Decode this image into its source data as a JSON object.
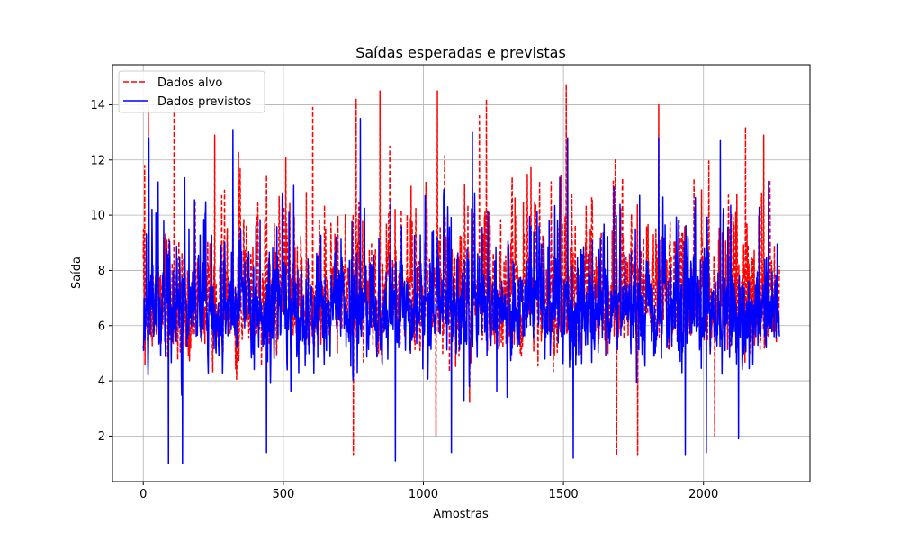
{
  "chart_data": {
    "type": "line",
    "title": "Saídas esperadas e previstas",
    "xlabel": "Amostras",
    "ylabel": "Saída",
    "xlim": [
      -110,
      2380
    ],
    "ylim": [
      0.35,
      15.45
    ],
    "x_ticks": [
      0,
      500,
      1000,
      1500,
      2000
    ],
    "y_ticks": [
      2,
      4,
      6,
      8,
      10,
      12,
      14
    ],
    "grid": true,
    "legend_position": "top-left",
    "n_samples": 2272,
    "series": [
      {
        "name": "Dados alvo",
        "color": "#ff0000",
        "linestyle": "dashed",
        "baseline": 6.3,
        "min": 1.3,
        "max": 14.75,
        "peaks": [
          {
            "x": 5,
            "y": 11.8
          },
          {
            "x": 18,
            "y": 13.9
          },
          {
            "x": 110,
            "y": 13.9
          },
          {
            "x": 255,
            "y": 12.9
          },
          {
            "x": 340,
            "y": 12.3
          },
          {
            "x": 605,
            "y": 13.9
          },
          {
            "x": 760,
            "y": 14.2
          },
          {
            "x": 845,
            "y": 14.5
          },
          {
            "x": 880,
            "y": 12.5
          },
          {
            "x": 1050,
            "y": 14.5
          },
          {
            "x": 1200,
            "y": 13.6
          },
          {
            "x": 1225,
            "y": 14.2
          },
          {
            "x": 1510,
            "y": 14.75
          },
          {
            "x": 1685,
            "y": 12.0
          },
          {
            "x": 1840,
            "y": 14.0
          },
          {
            "x": 2150,
            "y": 13.2
          },
          {
            "x": 2215,
            "y": 12.9
          }
        ],
        "troughs": [
          {
            "x": 750,
            "y": 1.3
          },
          {
            "x": 1045,
            "y": 2.0
          },
          {
            "x": 1690,
            "y": 1.3
          },
          {
            "x": 1765,
            "y": 1.3
          },
          {
            "x": 2040,
            "y": 2.0
          }
        ]
      },
      {
        "name": "Dados previstos",
        "color": "#0000ff",
        "linestyle": "solid",
        "baseline": 6.2,
        "min": 1.0,
        "max": 13.5,
        "peaks": [
          {
            "x": 20,
            "y": 12.8
          },
          {
            "x": 320,
            "y": 13.1
          },
          {
            "x": 775,
            "y": 13.5
          },
          {
            "x": 1175,
            "y": 13.0
          },
          {
            "x": 1515,
            "y": 12.8
          },
          {
            "x": 1840,
            "y": 12.8
          },
          {
            "x": 2060,
            "y": 12.7
          }
        ],
        "troughs": [
          {
            "x": 90,
            "y": 1.0
          },
          {
            "x": 140,
            "y": 1.0
          },
          {
            "x": 440,
            "y": 1.4
          },
          {
            "x": 900,
            "y": 1.1
          },
          {
            "x": 1100,
            "y": 1.4
          },
          {
            "x": 1535,
            "y": 1.2
          },
          {
            "x": 1935,
            "y": 1.3
          },
          {
            "x": 2010,
            "y": 1.4
          },
          {
            "x": 2125,
            "y": 1.9
          }
        ]
      }
    ]
  }
}
